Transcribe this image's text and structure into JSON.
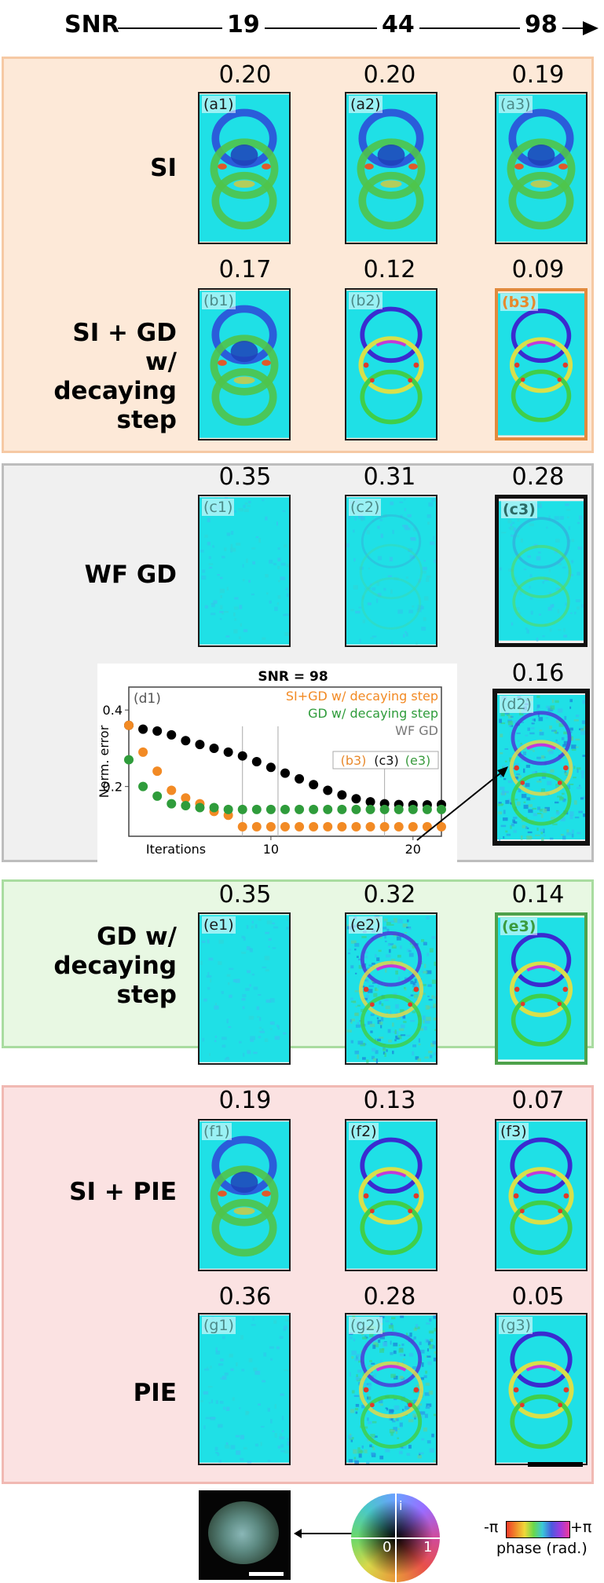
{
  "snr_header": {
    "label": "SNR",
    "levels": [
      "19",
      "44",
      "98"
    ]
  },
  "sections": {
    "a": {
      "label": "SI",
      "values": [
        "0.20",
        "0.20",
        "0.19"
      ],
      "tags": [
        "(a1)",
        "(a2)",
        "(a3)"
      ]
    },
    "b": {
      "label_lines": [
        "SI + GD",
        "w/ decaying",
        "step"
      ],
      "values": [
        "0.17",
        "0.12",
        "0.09"
      ],
      "tags": [
        "(b1)",
        "(b2)",
        "(b3)"
      ]
    },
    "c": {
      "label": "WF GD",
      "values": [
        "0.35",
        "0.31",
        "0.28"
      ],
      "tags": [
        "(c1)",
        "(c2)",
        "(c3)"
      ]
    },
    "d": {
      "value": "0.16",
      "tag": "(d2)"
    },
    "e": {
      "label_lines": [
        "GD w/",
        "decaying",
        "step"
      ],
      "values": [
        "0.35",
        "0.32",
        "0.14"
      ],
      "tags": [
        "(e1)",
        "(e2)",
        "(e3)"
      ]
    },
    "f": {
      "label": "SI + PIE",
      "values": [
        "0.19",
        "0.13",
        "0.07"
      ],
      "tags": [
        "(f1)",
        "(f2)",
        "(f3)"
      ]
    },
    "g": {
      "label": "PIE",
      "values": [
        "0.36",
        "0.28",
        "0.05"
      ],
      "tags": [
        "(g1)",
        "(g2)",
        "(g3)"
      ]
    }
  },
  "chart_data": {
    "type": "scatter",
    "title": "SNR = 98",
    "panel_tag": "(d1)",
    "xlabel": "Iterations",
    "ylabel": "Norm. error",
    "xticks": [
      10,
      20
    ],
    "yticks": [
      0.2,
      0.4
    ],
    "xlim": [
      0,
      22
    ],
    "ylim": [
      0.07,
      0.46
    ],
    "legend": [
      "SI+GD w/ decaying step",
      "GD w/ decaying step",
      "WF GD"
    ],
    "legend_placement": "top-right",
    "markers": [
      "(b3)",
      "(c3)",
      "(e3)"
    ],
    "series": [
      {
        "name": "WF GD",
        "color": "#000000",
        "x": [
          0,
          1,
          2,
          3,
          4,
          5,
          6,
          7,
          8,
          9,
          10,
          11,
          12,
          13,
          14,
          15,
          16,
          17,
          18,
          19,
          20,
          21,
          22
        ],
        "y": [
          0.36,
          0.35,
          0.345,
          0.335,
          0.32,
          0.31,
          0.3,
          0.29,
          0.28,
          0.265,
          0.25,
          0.235,
          0.22,
          0.205,
          0.19,
          0.178,
          0.168,
          0.16,
          0.155,
          0.153,
          0.152,
          0.152,
          0.153
        ]
      },
      {
        "name": "SI+GD w/ decaying step",
        "color": "#f28a24",
        "x": [
          0,
          1,
          2,
          3,
          4,
          5,
          6,
          7,
          8,
          9,
          10,
          11,
          12,
          13,
          14,
          15,
          16,
          17,
          18,
          19,
          20,
          21,
          22
        ],
        "y": [
          0.36,
          0.29,
          0.24,
          0.19,
          0.17,
          0.155,
          0.135,
          0.125,
          0.095,
          0.095,
          0.095,
          0.095,
          0.095,
          0.095,
          0.095,
          0.095,
          0.095,
          0.095,
          0.095,
          0.095,
          0.095,
          0.095,
          0.095
        ]
      },
      {
        "name": "GD w/ decaying step",
        "color": "#2f9c3b",
        "x": [
          0,
          1,
          2,
          3,
          4,
          5,
          6,
          7,
          8,
          9,
          10,
          11,
          12,
          13,
          14,
          15,
          16,
          17,
          18,
          19,
          20,
          21,
          22
        ],
        "y": [
          0.27,
          0.2,
          0.175,
          0.155,
          0.15,
          0.145,
          0.145,
          0.14,
          0.14,
          0.14,
          0.14,
          0.14,
          0.14,
          0.14,
          0.14,
          0.14,
          0.14,
          0.14,
          0.14,
          0.14,
          0.14,
          0.14,
          0.14
        ]
      }
    ]
  },
  "colorbar": {
    "neg": "-π",
    "pos": "+π",
    "caption": "phase (rad.)"
  },
  "colorwheel": {
    "imag": "i",
    "zero": "0",
    "one": "1"
  }
}
